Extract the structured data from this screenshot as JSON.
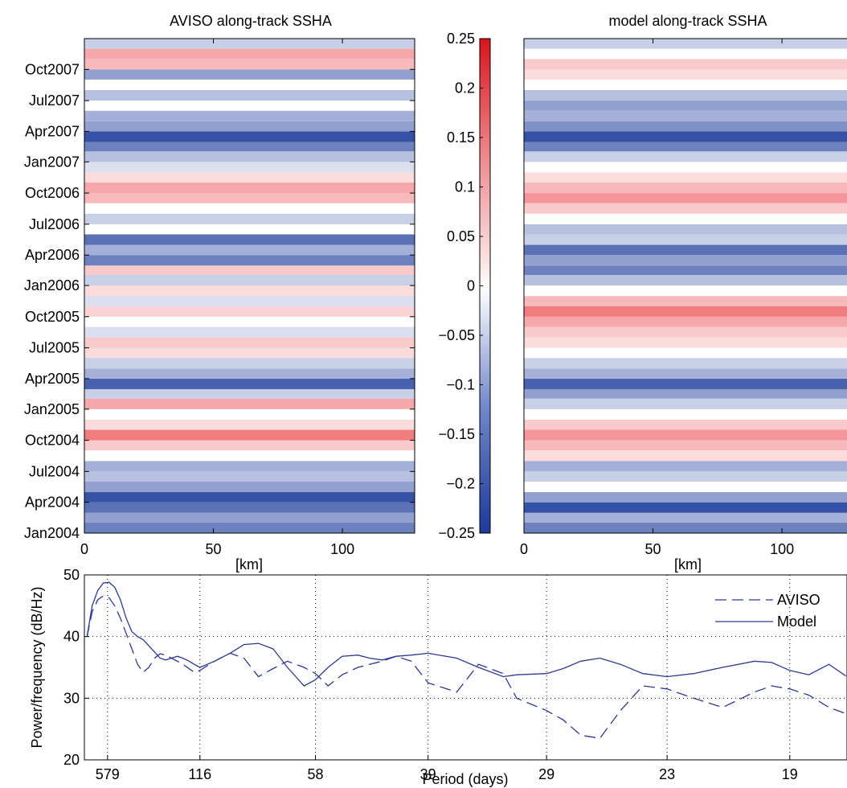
{
  "chart_data": [
    {
      "type": "heatmap",
      "title": "AVISO along-track SSHA",
      "xlabel": "[km]",
      "ylabel": "",
      "xlim": [
        0,
        128
      ],
      "ylim": [
        "2004-01-01",
        "2007-12-31"
      ],
      "x_ticks": [
        "0",
        "50",
        "100"
      ],
      "y_ticks": [
        "Jan2004",
        "Apr2004",
        "Jul2004",
        "Oct2004",
        "Jan2005",
        "Apr2005",
        "Jul2005",
        "Oct2005",
        "Jan2006",
        "Apr2006",
        "Jul2006",
        "Oct2006",
        "Jan2007",
        "Apr2007",
        "Jul2007",
        "Oct2007"
      ],
      "bands": [
        {
          "start": "2004-01",
          "end": "2004-02",
          "level": -0.16
        },
        {
          "start": "2004-02",
          "end": "2004-03",
          "level": -0.12
        },
        {
          "start": "2004-03",
          "end": "2004-04",
          "level": -0.18
        },
        {
          "start": "2004-04",
          "end": "2004-05",
          "level": -0.22
        },
        {
          "start": "2004-05",
          "end": "2004-06",
          "level": -0.12
        },
        {
          "start": "2004-06",
          "end": "2004-07",
          "level": -0.08
        },
        {
          "start": "2004-07",
          "end": "2004-08",
          "level": -0.1
        },
        {
          "start": "2004-08",
          "end": "2004-09",
          "level": 0.0
        },
        {
          "start": "2004-09",
          "end": "2004-10",
          "level": 0.06
        },
        {
          "start": "2004-10",
          "end": "2004-11",
          "level": 0.15
        },
        {
          "start": "2004-11",
          "end": "2004-12",
          "level": 0.04
        },
        {
          "start": "2004-12",
          "end": "2005-01",
          "level": 0.0
        },
        {
          "start": "2005-01",
          "end": "2005-02",
          "level": 0.1
        },
        {
          "start": "2005-02",
          "end": "2005-03",
          "level": -0.06
        },
        {
          "start": "2005-03",
          "end": "2005-04",
          "level": -0.2
        },
        {
          "start": "2005-04",
          "end": "2005-05",
          "level": -0.1
        },
        {
          "start": "2005-05",
          "end": "2005-06",
          "level": -0.06
        },
        {
          "start": "2005-06",
          "end": "2005-07",
          "level": 0.04
        },
        {
          "start": "2005-07",
          "end": "2005-08",
          "level": 0.06
        },
        {
          "start": "2005-08",
          "end": "2005-09",
          "level": -0.04
        },
        {
          "start": "2005-09",
          "end": "2005-10",
          "level": 0.0
        },
        {
          "start": "2005-10",
          "end": "2005-11",
          "level": 0.05
        },
        {
          "start": "2005-11",
          "end": "2005-12",
          "level": -0.04
        },
        {
          "start": "2005-12",
          "end": "2006-01",
          "level": 0.04
        },
        {
          "start": "2006-01",
          "end": "2006-02",
          "level": -0.06
        },
        {
          "start": "2006-02",
          "end": "2006-03",
          "level": 0.06
        },
        {
          "start": "2006-03",
          "end": "2006-04",
          "level": -0.16
        },
        {
          "start": "2006-04",
          "end": "2006-05",
          "level": -0.1
        },
        {
          "start": "2006-05",
          "end": "2006-06",
          "level": -0.18
        },
        {
          "start": "2006-06",
          "end": "2006-07",
          "level": 0.0
        },
        {
          "start": "2006-07",
          "end": "2006-08",
          "level": -0.06
        },
        {
          "start": "2006-08",
          "end": "2006-09",
          "level": 0.0
        },
        {
          "start": "2006-09",
          "end": "2006-10",
          "level": 0.08
        },
        {
          "start": "2006-10",
          "end": "2006-11",
          "level": 0.1
        },
        {
          "start": "2006-11",
          "end": "2006-12",
          "level": 0.04
        },
        {
          "start": "2006-12",
          "end": "2007-01",
          "level": -0.04
        },
        {
          "start": "2007-01",
          "end": "2007-02",
          "level": -0.08
        },
        {
          "start": "2007-02",
          "end": "2007-03",
          "level": -0.16
        },
        {
          "start": "2007-03",
          "end": "2007-04",
          "level": -0.22
        },
        {
          "start": "2007-04",
          "end": "2007-05",
          "level": -0.12
        },
        {
          "start": "2007-05",
          "end": "2007-06",
          "level": -0.1
        },
        {
          "start": "2007-06",
          "end": "2007-07",
          "level": 0.0
        },
        {
          "start": "2007-07",
          "end": "2007-08",
          "level": -0.08
        },
        {
          "start": "2007-08",
          "end": "2007-09",
          "level": 0.0
        },
        {
          "start": "2007-09",
          "end": "2007-10",
          "level": -0.12
        },
        {
          "start": "2007-10",
          "end": "2007-11",
          "level": 0.08
        },
        {
          "start": "2007-11",
          "end": "2007-12",
          "level": 0.1
        },
        {
          "start": "2007-12",
          "end": "2007-12-31",
          "level": -0.06
        }
      ]
    },
    {
      "type": "heatmap",
      "title": "model along-track SSHA",
      "xlabel": "[km]",
      "ylabel": "",
      "xlim": [
        0,
        128
      ],
      "ylim": [
        "2004-01-01",
        "2007-12-31"
      ],
      "x_ticks": [
        "0",
        "50",
        "100"
      ],
      "bands": [
        {
          "start": "2004-01",
          "end": "2004-02",
          "level": -0.16
        },
        {
          "start": "2004-02",
          "end": "2004-03",
          "level": -0.1
        },
        {
          "start": "2004-03",
          "end": "2004-04",
          "level": -0.22
        },
        {
          "start": "2004-04",
          "end": "2004-05",
          "level": -0.12
        },
        {
          "start": "2004-05",
          "end": "2004-06",
          "level": 0.0
        },
        {
          "start": "2004-06",
          "end": "2004-07",
          "level": -0.06
        },
        {
          "start": "2004-07",
          "end": "2004-08",
          "level": -0.1
        },
        {
          "start": "2004-08",
          "end": "2004-09",
          "level": 0.04
        },
        {
          "start": "2004-09",
          "end": "2004-10",
          "level": 0.08
        },
        {
          "start": "2004-10",
          "end": "2004-11",
          "level": 0.12
        },
        {
          "start": "2004-11",
          "end": "2004-12",
          "level": 0.06
        },
        {
          "start": "2004-12",
          "end": "2005-01",
          "level": 0.0
        },
        {
          "start": "2005-01",
          "end": "2005-02",
          "level": -0.06
        },
        {
          "start": "2005-02",
          "end": "2005-03",
          "level": -0.12
        },
        {
          "start": "2005-03",
          "end": "2005-04",
          "level": -0.2
        },
        {
          "start": "2005-04",
          "end": "2005-05",
          "level": -0.1
        },
        {
          "start": "2005-05",
          "end": "2005-06",
          "level": -0.06
        },
        {
          "start": "2005-06",
          "end": "2005-07",
          "level": 0.0
        },
        {
          "start": "2005-07",
          "end": "2005-08",
          "level": 0.04
        },
        {
          "start": "2005-08",
          "end": "2005-09",
          "level": 0.06
        },
        {
          "start": "2005-09",
          "end": "2005-10",
          "level": 0.1
        },
        {
          "start": "2005-10",
          "end": "2005-11",
          "level": 0.15
        },
        {
          "start": "2005-11",
          "end": "2005-12",
          "level": 0.08
        },
        {
          "start": "2005-12",
          "end": "2006-01",
          "level": 0.0
        },
        {
          "start": "2006-01",
          "end": "2006-02",
          "level": -0.08
        },
        {
          "start": "2006-02",
          "end": "2006-03",
          "level": -0.16
        },
        {
          "start": "2006-03",
          "end": "2006-04",
          "level": -0.12
        },
        {
          "start": "2006-04",
          "end": "2006-05",
          "level": -0.18
        },
        {
          "start": "2006-05",
          "end": "2006-06",
          "level": -0.06
        },
        {
          "start": "2006-06",
          "end": "2006-07",
          "level": -0.08
        },
        {
          "start": "2006-07",
          "end": "2006-08",
          "level": 0.0
        },
        {
          "start": "2006-08",
          "end": "2006-09",
          "level": 0.06
        },
        {
          "start": "2006-09",
          "end": "2006-10",
          "level": 0.12
        },
        {
          "start": "2006-10",
          "end": "2006-11",
          "level": 0.08
        },
        {
          "start": "2006-11",
          "end": "2006-12",
          "level": 0.04
        },
        {
          "start": "2006-12",
          "end": "2007-01",
          "level": 0.0
        },
        {
          "start": "2007-01",
          "end": "2007-02",
          "level": -0.06
        },
        {
          "start": "2007-02",
          "end": "2007-03",
          "level": -0.16
        },
        {
          "start": "2007-03",
          "end": "2007-04",
          "level": -0.22
        },
        {
          "start": "2007-04",
          "end": "2007-05",
          "level": -0.14
        },
        {
          "start": "2007-05",
          "end": "2007-06",
          "level": -0.1
        },
        {
          "start": "2007-06",
          "end": "2007-07",
          "level": -0.12
        },
        {
          "start": "2007-07",
          "end": "2007-08",
          "level": -0.08
        },
        {
          "start": "2007-08",
          "end": "2007-09",
          "level": 0.0
        },
        {
          "start": "2007-09",
          "end": "2007-10",
          "level": 0.04
        },
        {
          "start": "2007-10",
          "end": "2007-11",
          "level": 0.06
        },
        {
          "start": "2007-11",
          "end": "2007-12",
          "level": 0.0
        },
        {
          "start": "2007-12",
          "end": "2007-12-31",
          "level": -0.06
        }
      ]
    },
    {
      "type": "colorbar",
      "vmin": -0.25,
      "vmax": 0.25,
      "ticks": [
        "0.25",
        "0.2",
        "0.15",
        "0.1",
        "0.05",
        "0",
        "−0.05",
        "−0.1",
        "−0.15",
        "−0.2",
        "−0.25"
      ],
      "colors": {
        "low": "#1b3a9a",
        "mid": "#ffffff",
        "high": "#e8242a"
      }
    },
    {
      "type": "line",
      "title": "",
      "xlabel": "Period (days)",
      "ylabel": "Power/frequency (dB/Hz)",
      "ylim": [
        20,
        50
      ],
      "y_ticks": [
        "20",
        "30",
        "40",
        "50"
      ],
      "x_ticks": [
        "579",
        "116",
        "58",
        "39",
        "29",
        "23",
        "19"
      ],
      "xlim_frequency_per_day": [
        0,
        0.0569
      ],
      "grid": true,
      "legend": "top-right",
      "series": [
        {
          "name": "AVISO",
          "style": "dashed",
          "color": "#2b3990",
          "x_period_days": [
            5000,
            1724,
            1000,
            704,
            543,
            442,
            372,
            321,
            282,
            252,
            228,
            208,
            191,
            177,
            165,
            154,
            144,
            136,
            128,
            122,
            116,
            103,
            92,
            84,
            77,
            71,
            66,
            61,
            58,
            55,
            52,
            49,
            47,
            45,
            43,
            41,
            39,
            36,
            34,
            32,
            31,
            29,
            28,
            27,
            26,
            25,
            24,
            23,
            22,
            21,
            20,
            19.5,
            19,
            18.5,
            18,
            17.6
          ],
          "y": [
            40,
            44,
            46,
            46.6,
            46.3,
            45,
            43,
            40.5,
            38,
            35.5,
            34.2,
            35,
            36.5,
            37.2,
            37,
            36.5,
            36,
            35.5,
            34.8,
            34.2,
            34.5,
            36,
            37.3,
            36.5,
            33.5,
            34.8,
            36,
            35,
            34,
            32,
            33.8,
            35,
            35.5,
            36,
            36.8,
            36,
            32.5,
            31,
            35.5,
            34,
            30,
            28,
            26.5,
            24,
            23.5,
            28,
            32,
            31.5,
            30,
            28.5,
            31,
            32,
            31.5,
            30.5,
            28.5,
            27.5
          ]
        },
        {
          "name": "Model",
          "style": "solid",
          "color": "#2b3990",
          "x_period_days": [
            5000,
            1724,
            1000,
            704,
            543,
            442,
            372,
            321,
            282,
            252,
            228,
            208,
            191,
            177,
            165,
            154,
            144,
            136,
            128,
            122,
            116,
            103,
            92,
            84,
            77,
            71,
            66,
            61,
            58,
            55,
            52,
            49,
            47,
            45,
            43,
            41,
            39,
            36,
            34,
            32,
            31,
            29,
            28,
            27,
            26,
            25,
            24,
            23,
            22,
            21,
            20,
            19.5,
            19,
            18.5,
            18,
            17.6
          ],
          "y": [
            40,
            45,
            47.5,
            48.7,
            48.8,
            48,
            46,
            43,
            40.8,
            40,
            39.5,
            38.5,
            37.5,
            36.5,
            36.2,
            36.5,
            36.8,
            36.5,
            36,
            35.5,
            35,
            36,
            37.3,
            38.7,
            38.9,
            38,
            35,
            32,
            33,
            35,
            36.8,
            37,
            36.5,
            36.2,
            36.8,
            37,
            37.3,
            36.5,
            35,
            33.5,
            33.8,
            34,
            34.8,
            36,
            36.5,
            35.5,
            34,
            33.5,
            34,
            35,
            36,
            35.8,
            34.5,
            33.8,
            35.5,
            33.6
          ]
        }
      ]
    }
  ]
}
